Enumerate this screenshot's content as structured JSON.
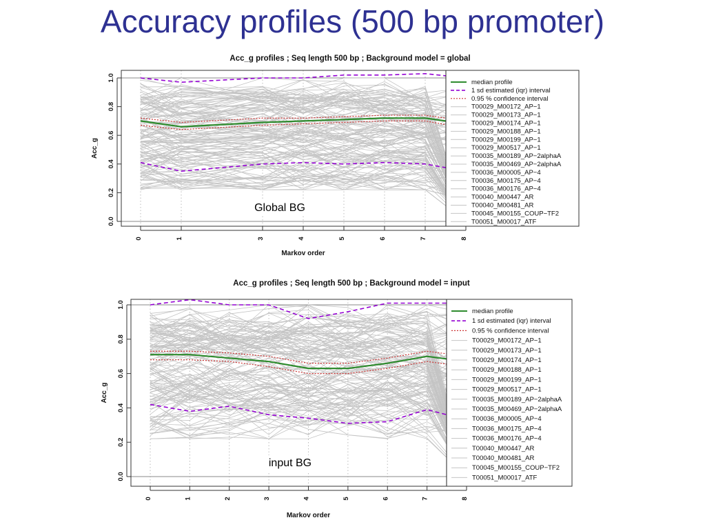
{
  "slide": {
    "title": "Accuracy profiles (500 bp promoter)"
  },
  "legend_entries": [
    "median profile",
    "1 sd estimated (iqr) interval",
    "0.95 % confidence interval",
    "T00029_M00172_AP−1",
    "T00029_M00173_AP−1",
    "T00029_M00174_AP−1",
    "T00029_M00188_AP−1",
    "T00029_M00199_AP−1",
    "T00029_M00517_AP−1",
    "T00035_M00189_AP−2alphaA",
    "T00035_M00469_AP−2alphaA",
    "T00036_M00005_AP−4",
    "T00036_M00175_AP−4",
    "T00036_M00176_AP−4",
    "T00040_M00447_AR",
    "T00040_M00481_AR",
    "T00045_M00155_COUP−TF2",
    "T00051_M00017_ATF"
  ],
  "colors": {
    "title": "#2e3192",
    "median": "#2e8b2e",
    "sd": "#9400d3",
    "ci": "#cc3333",
    "profiles": "#c4c4c4",
    "grid": "#bbbbbb"
  },
  "chart_data": [
    {
      "type": "line",
      "title": "Acc_g profiles ; Seq length 500 bp ; Background model = global",
      "xlabel": "Markov order",
      "ylabel": "Acc_g",
      "x": [
        0,
        1,
        3,
        4,
        5,
        6,
        7,
        8
      ],
      "x_ticks": [
        "0",
        "1",
        "3",
        "4",
        "5",
        "6",
        "7",
        "8"
      ],
      "y_ticks": [
        "0.0",
        "0.2",
        "0.4",
        "0.6",
        "0.8",
        "1.0"
      ],
      "ylim": [
        0,
        1
      ],
      "grid": true,
      "legend_position": "right",
      "annotation": "Global BG",
      "series": [
        {
          "name": "median profile",
          "values": [
            0.7,
            0.66,
            0.69,
            0.7,
            0.71,
            0.72,
            0.72,
            0.68
          ]
        },
        {
          "name": "1 sd estimated (iqr) interval",
          "values": [
            1.0,
            0.97,
            1.0,
            1.0,
            1.02,
            1.02,
            1.03,
            1.0
          ]
        },
        {
          "name": "1 sd estimated (iqr) interval",
          "values": [
            0.41,
            0.35,
            0.4,
            0.41,
            0.4,
            0.41,
            0.4,
            0.35
          ]
        },
        {
          "name": "0.95 % confidence interval",
          "values": [
            0.72,
            0.69,
            0.72,
            0.72,
            0.73,
            0.74,
            0.74,
            0.7
          ]
        },
        {
          "name": "0.95 % confidence interval",
          "values": [
            0.67,
            0.64,
            0.67,
            0.68,
            0.69,
            0.7,
            0.7,
            0.65
          ]
        }
      ]
    },
    {
      "type": "line",
      "title": "Acc_g profiles ; Seq length 500 bp ; Background model = input",
      "xlabel": "Markov order",
      "ylabel": "Acc_g",
      "x": [
        0,
        1,
        2,
        3,
        4,
        5,
        6,
        7,
        8
      ],
      "x_ticks": [
        "0",
        "1",
        "2",
        "3",
        "4",
        "5",
        "6",
        "7",
        "8"
      ],
      "y_ticks": [
        "0.0",
        "0.2",
        "0.4",
        "0.6",
        "0.8",
        "1.0"
      ],
      "ylim": [
        0,
        1
      ],
      "grid": true,
      "legend_position": "right",
      "annotation": "input BG",
      "series": [
        {
          "name": "median profile",
          "values": [
            0.71,
            0.71,
            0.69,
            0.67,
            0.63,
            0.63,
            0.66,
            0.7,
            0.67
          ]
        },
        {
          "name": "1 sd estimated (iqr) interval",
          "values": [
            1.0,
            1.03,
            1.0,
            1.0,
            0.92,
            0.96,
            1.01,
            1.01,
            1.01
          ]
        },
        {
          "name": "1 sd estimated (iqr) interval",
          "values": [
            0.42,
            0.38,
            0.41,
            0.36,
            0.34,
            0.31,
            0.32,
            0.39,
            0.33
          ]
        },
        {
          "name": "0.95 % confidence interval",
          "values": [
            0.73,
            0.73,
            0.72,
            0.7,
            0.66,
            0.66,
            0.69,
            0.73,
            0.7
          ]
        },
        {
          "name": "0.95 % confidence interval",
          "values": [
            0.68,
            0.68,
            0.67,
            0.64,
            0.6,
            0.6,
            0.63,
            0.67,
            0.64
          ]
        }
      ]
    }
  ]
}
